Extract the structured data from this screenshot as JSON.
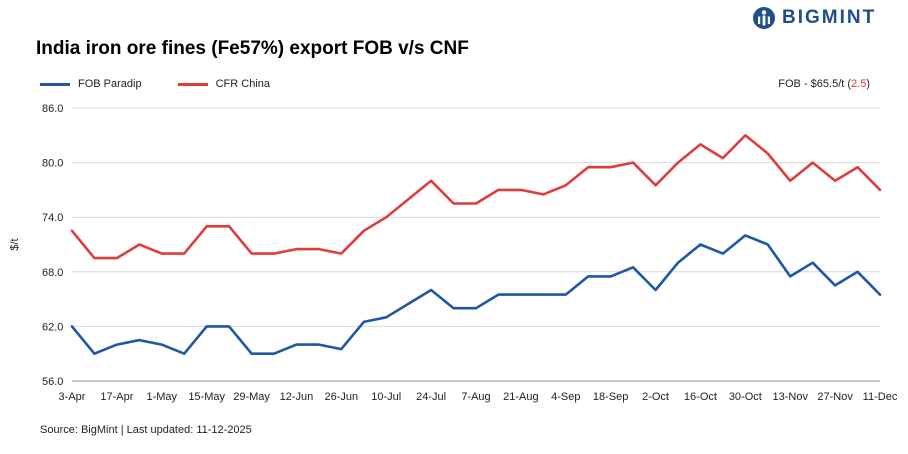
{
  "brand": {
    "name": "BIGMINT",
    "logo_color": "#1f4e8c"
  },
  "annotation": {
    "prefix": "FOB - $65.5/t (",
    "change": "2.5",
    "suffix": ")"
  },
  "source": "Source: BigMint | Last updated: 11-12-2025",
  "chart_data": {
    "type": "line",
    "title": "India iron ore fines (Fe57%) export FOB v/s CNF",
    "xlabel": "",
    "ylabel": "$/t",
    "ylim": [
      56,
      86
    ],
    "yticks": [
      "56.0",
      "62.0",
      "68.0",
      "74.0",
      "80.0",
      "86.0"
    ],
    "grid": "horizontal",
    "legend_position": "top-left",
    "x": [
      "3-Apr",
      "10-Apr",
      "17-Apr",
      "24-Apr",
      "1-May",
      "8-May",
      "15-May",
      "22-May",
      "29-May",
      "5-Jun",
      "12-Jun",
      "19-Jun",
      "26-Jun",
      "3-Jul",
      "10-Jul",
      "17-Jul",
      "24-Jul",
      "31-Jul",
      "7-Aug",
      "14-Aug",
      "21-Aug",
      "28-Aug",
      "4-Sep",
      "11-Sep",
      "18-Sep",
      "25-Sep",
      "2-Oct",
      "9-Oct",
      "16-Oct",
      "23-Oct",
      "30-Oct",
      "6-Nov",
      "13-Nov",
      "20-Nov",
      "27-Nov",
      "4-Dec",
      "11-Dec"
    ],
    "xticks": [
      "3-Apr",
      "17-Apr",
      "1-May",
      "15-May",
      "29-May",
      "12-Jun",
      "26-Jun",
      "10-Jul",
      "24-Jul",
      "7-Aug",
      "21-Aug",
      "4-Sep",
      "18-Sep",
      "2-Oct",
      "16-Oct",
      "30-Oct",
      "13-Nov",
      "27-Nov",
      "11-Dec"
    ],
    "series": [
      {
        "name": "FOB Paradip",
        "color": "#1f56a6",
        "values": [
          62.0,
          59.0,
          60.0,
          60.5,
          60.0,
          59.0,
          62.0,
          62.0,
          59.0,
          59.0,
          60.0,
          60.0,
          59.5,
          62.5,
          63.0,
          64.5,
          66.0,
          64.0,
          64.0,
          65.5,
          65.5,
          65.5,
          65.5,
          67.5,
          67.5,
          68.5,
          66.0,
          69.0,
          71.0,
          70.0,
          72.0,
          71.0,
          67.5,
          69.0,
          66.5,
          68.0,
          65.5
        ]
      },
      {
        "name": "CFR China",
        "color": "#e03c3c",
        "values": [
          72.5,
          69.5,
          69.5,
          71.0,
          70.0,
          70.0,
          73.0,
          73.0,
          70.0,
          70.0,
          70.5,
          70.5,
          70.0,
          72.5,
          74.0,
          76.0,
          78.0,
          75.5,
          75.5,
          77.0,
          77.0,
          76.5,
          77.5,
          79.5,
          79.5,
          80.0,
          77.5,
          80.0,
          82.0,
          80.5,
          83.0,
          81.0,
          78.0,
          80.0,
          78.0,
          79.5,
          77.0
        ]
      }
    ]
  }
}
